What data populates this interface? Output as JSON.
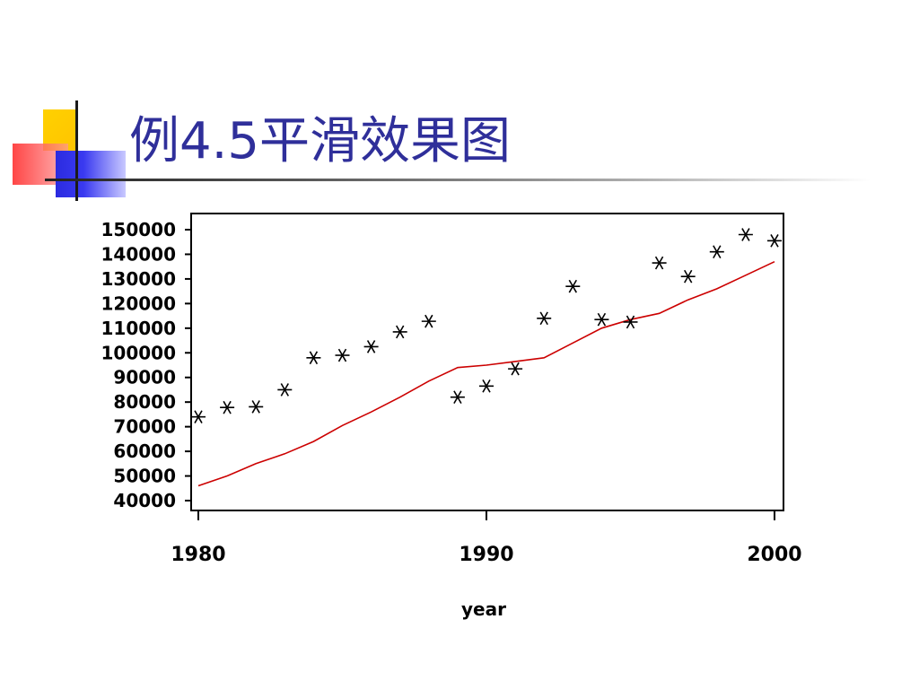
{
  "slide": {
    "title": "例4.5平滑效果图"
  },
  "colors": {
    "title": "#2f2f9a",
    "smooth_line": "#cc0000",
    "markers": "#000000",
    "deco_yellow": "#ffc400",
    "deco_red": "#ff3c3c",
    "deco_blue": "#2b2be0"
  },
  "chart_data": {
    "type": "scatter",
    "title": "",
    "xlabel": "year",
    "ylabel": "",
    "xlim": [
      1980,
      2000
    ],
    "ylim": [
      35000,
      155000
    ],
    "x_ticks": [
      1980,
      1990,
      2000
    ],
    "y_ticks": [
      40000,
      50000,
      60000,
      70000,
      80000,
      90000,
      100000,
      110000,
      120000,
      130000,
      140000,
      150000
    ],
    "grid": false,
    "series": [
      {
        "type": "scatter",
        "marker": "asterisk",
        "x": [
          1980,
          1981,
          1982,
          1983,
          1984,
          1985,
          1986,
          1987,
          1988,
          1989,
          1990,
          1991,
          1992,
          1993,
          1994,
          1995,
          1996,
          1997,
          1998,
          1999,
          2000
        ],
        "y": [
          74000,
          77800,
          78100,
          85000,
          98000,
          99000,
          102500,
          108500,
          112800,
          82000,
          86500,
          93500,
          114000,
          127000,
          113500,
          112500,
          136500,
          131000,
          141000,
          148000,
          145500
        ]
      },
      {
        "type": "line",
        "x": [
          1980,
          1981,
          1982,
          1983,
          1984,
          1985,
          1986,
          1987,
          1988,
          1989,
          1990,
          1991,
          1992,
          1993,
          1994,
          1995,
          1996,
          1997,
          1998,
          1999,
          2000
        ],
        "y": [
          46000,
          50000,
          55000,
          59000,
          64000,
          70500,
          76000,
          82000,
          88500,
          94000,
          95000,
          96500,
          98000,
          104000,
          110000,
          113500,
          116000,
          121500,
          126000,
          131500,
          137000
        ]
      }
    ]
  }
}
